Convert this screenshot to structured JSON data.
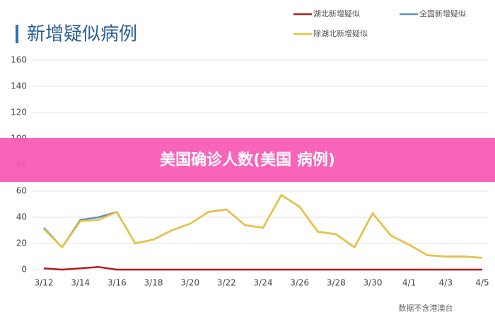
{
  "chart_data": {
    "type": "line",
    "title": "新增疑似病例",
    "categories": [
      "3/12",
      null,
      "3/14",
      null,
      "3/16",
      null,
      "3/18",
      null,
      "3/20",
      null,
      "3/22",
      null,
      "3/24",
      null,
      "3/26",
      null,
      "3/28",
      null,
      "3/30",
      null,
      "4/1",
      null,
      "4/3",
      null,
      "4/5"
    ],
    "series": [
      {
        "name": "湖北新增疑似",
        "color": "#b01c1c",
        "values": [
          1,
          0,
          1,
          2,
          0,
          0,
          0,
          0,
          0,
          0,
          0,
          0,
          0,
          0,
          0,
          0,
          0,
          0,
          0,
          0,
          0,
          0,
          0,
          0,
          0
        ]
      },
      {
        "name": "全国新增疑似",
        "color": "#5b8fc7",
        "values": [
          32,
          17,
          38,
          40,
          44,
          20,
          23,
          30,
          35,
          44,
          46,
          34,
          32,
          57,
          48,
          29,
          27,
          17,
          43,
          26,
          19,
          11,
          10,
          10,
          9
        ]
      },
      {
        "name": "除湖北新增疑似",
        "color": "#ecc23a",
        "values": [
          31,
          17,
          37,
          38,
          44,
          20,
          23,
          30,
          35,
          44,
          46,
          34,
          32,
          57,
          48,
          29,
          27,
          17,
          43,
          26,
          19,
          11,
          10,
          10,
          9
        ]
      }
    ],
    "ylim": [
      0,
      160
    ],
    "yticks": [
      0,
      20,
      40,
      60,
      80,
      100,
      120,
      140,
      160
    ],
    "grid": true,
    "legend": "top-right"
  },
  "banner": "美国确诊人数(美国 病例)",
  "source": "数据不含港澳台"
}
